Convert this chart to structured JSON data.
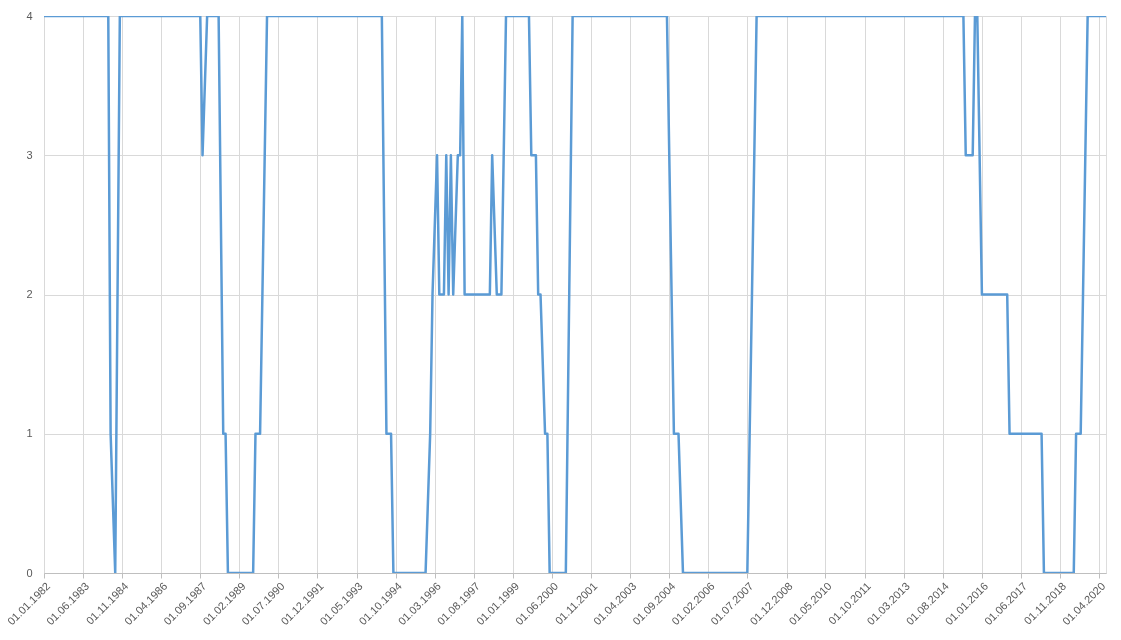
{
  "chart_data": {
    "type": "line",
    "x": [
      "1982-01",
      "1984-05",
      "1984-06",
      "1984-08",
      "1984-10",
      "1987-09",
      "1987-10",
      "1987-12",
      "1988-05",
      "1988-07",
      "1988-08",
      "1988-09",
      "1989-08",
      "1989-09",
      "1989-11",
      "1990-02",
      "1994-04",
      "1994-06",
      "1994-08",
      "1994-09",
      "1995-11",
      "1996-01",
      "1996-02",
      "1996-04",
      "1996-05",
      "1996-07",
      "1996-08",
      "1996-09",
      "1996-10",
      "1996-11",
      "1997-01",
      "1997-02",
      "1997-03",
      "1997-04",
      "1998-03",
      "1998-04",
      "1998-06",
      "1998-08",
      "1998-10",
      "1999-08",
      "1999-09",
      "1999-11",
      "1999-12",
      "2000-01",
      "2000-03",
      "2000-04",
      "2000-05",
      "2000-12",
      "2001-03",
      "2004-08",
      "2004-11",
      "2005-01",
      "2005-03",
      "2007-07",
      "2007-08",
      "2007-11",
      "2015-05",
      "2015-06",
      "2015-09",
      "2015-10",
      "2015-11",
      "2016-01",
      "2016-12",
      "2017-01",
      "2018-03",
      "2018-04",
      "2019-05",
      "2019-06",
      "2019-08",
      "2019-11",
      "2020-07"
    ],
    "series": [
      {
        "color": "#5b9bd5",
        "values": [
          4,
          4,
          1,
          0,
          4,
          4,
          3,
          4,
          4,
          1,
          1,
          0,
          0,
          1,
          1,
          4,
          4,
          1,
          1,
          0,
          0,
          1,
          2,
          3,
          2,
          2,
          3,
          2,
          3,
          2,
          3,
          3,
          4,
          2,
          2,
          3,
          2,
          2,
          4,
          4,
          3,
          3,
          2,
          2,
          1,
          1,
          0,
          0,
          4,
          4,
          1,
          1,
          0,
          0,
          1,
          4,
          4,
          3,
          3,
          4,
          4,
          2,
          2,
          1,
          1,
          0,
          0,
          1,
          1,
          4,
          4
        ]
      }
    ],
    "xlim": [
      "1982-01",
      "2020-07"
    ],
    "xticks": [
      {
        "value": "1982-01",
        "label": "01.01.1982"
      },
      {
        "value": "1983-06",
        "label": "01.06.1983"
      },
      {
        "value": "1984-11",
        "label": "01.11.1984"
      },
      {
        "value": "1986-04",
        "label": "01.04.1986"
      },
      {
        "value": "1987-09",
        "label": "01.09.1987"
      },
      {
        "value": "1989-02",
        "label": "01.02.1989"
      },
      {
        "value": "1990-07",
        "label": "01.07.1990"
      },
      {
        "value": "1991-12",
        "label": "01.12.1991"
      },
      {
        "value": "1993-05",
        "label": "01.05.1993"
      },
      {
        "value": "1994-10",
        "label": "01.10.1994"
      },
      {
        "value": "1996-03",
        "label": "01.03.1996"
      },
      {
        "value": "1997-08",
        "label": "01.08.1997"
      },
      {
        "value": "1999-01",
        "label": "01.01.1999"
      },
      {
        "value": "2000-06",
        "label": "01.06.2000"
      },
      {
        "value": "2001-11",
        "label": "01.11.2001"
      },
      {
        "value": "2003-04",
        "label": "01.04.2003"
      },
      {
        "value": "2004-09",
        "label": "01.09.2004"
      },
      {
        "value": "2006-02",
        "label": "01.02.2006"
      },
      {
        "value": "2007-07",
        "label": "01.07.2007"
      },
      {
        "value": "2008-12",
        "label": "01.12.2008"
      },
      {
        "value": "2010-05",
        "label": "01.05.2010"
      },
      {
        "value": "2011-10",
        "label": "01.10.2011"
      },
      {
        "value": "2013-03",
        "label": "01.03.2013"
      },
      {
        "value": "2014-08",
        "label": "01.08.2014"
      },
      {
        "value": "2016-01",
        "label": "01.01.2016"
      },
      {
        "value": "2017-06",
        "label": "01.06.2017"
      },
      {
        "value": "2018-11",
        "label": "01.11.2018"
      },
      {
        "value": "2020-04",
        "label": "01.04.2020"
      }
    ],
    "ylim": [
      0,
      4
    ],
    "yticks": [
      0,
      1,
      2,
      3,
      4
    ],
    "grid": true,
    "marker": "none",
    "line_style": "solid"
  }
}
